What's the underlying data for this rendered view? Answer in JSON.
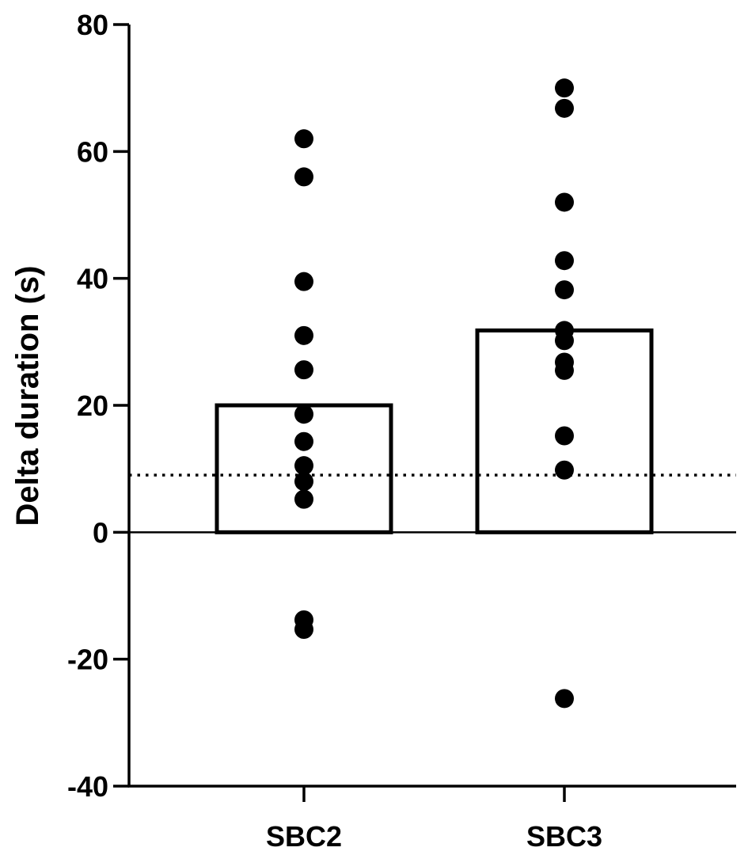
{
  "chart_data": {
    "type": "bar",
    "title": "",
    "xlabel": "",
    "ylabel": "Delta duration (s)",
    "ylim": [
      -40,
      80
    ],
    "yticks": [
      -40,
      -20,
      0,
      20,
      40,
      60,
      80
    ],
    "categories": [
      "SBC2",
      "SBC3"
    ],
    "values": [
      20,
      31.8
    ],
    "points": [
      [
        62,
        56,
        39.5,
        31,
        25.6,
        18.6,
        14.3,
        10.5,
        8,
        5.2,
        -13.8,
        -15.3
      ],
      [
        70,
        66.8,
        52,
        42.8,
        38.2,
        31.8,
        30.2,
        26.8,
        25.5,
        15.2,
        9.8,
        -26.2
      ]
    ],
    "reference_line": 9,
    "grid": false,
    "colors": {
      "bar_fill": "#ffffff",
      "bar_stroke": "#000000",
      "points": "#000000",
      "axis": "#000000"
    }
  }
}
